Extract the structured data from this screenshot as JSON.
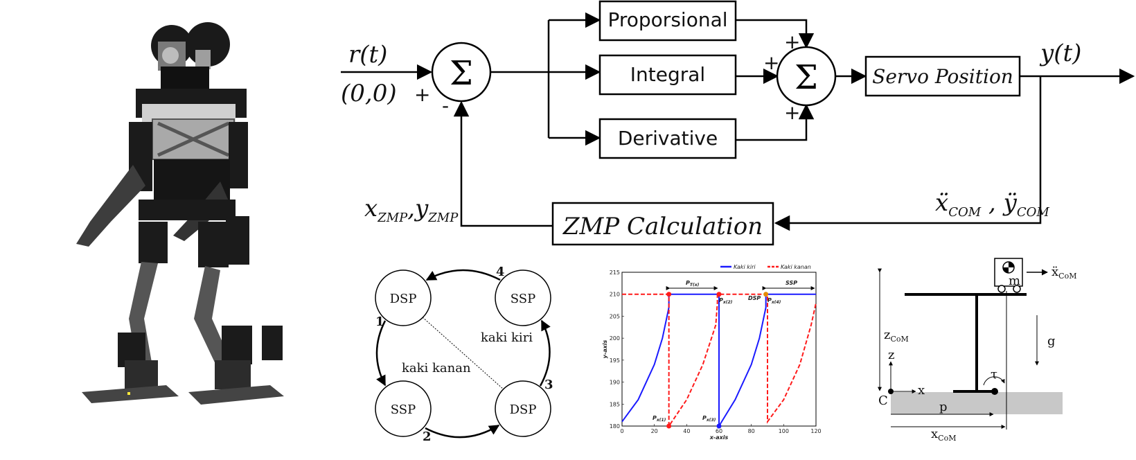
{
  "block_diagram": {
    "input_label": "r(t)",
    "input_value": "(0,0)",
    "output_label": "y(t)",
    "sum_symbol": "Σ",
    "plus": "+",
    "minus": "-",
    "blocks": {
      "proportional": "Proporsional",
      "integral": "Integral",
      "derivative": "Derivative",
      "servo": "Servo Position",
      "zmp": "ZMP Calculation"
    },
    "feedback_x": "x",
    "feedback_y": "y",
    "feedback_sub": "ZMP",
    "accel_x": "ẍ",
    "accel_y": "ÿ",
    "accel_sub": "COM",
    "comma": ","
  },
  "state_machine": {
    "states": [
      "DSP",
      "SSP",
      "SSP",
      "DSP"
    ],
    "transitions": [
      "1",
      "2",
      "3",
      "4"
    ],
    "labels": {
      "right": "kaki kanan",
      "left": "kaki kiri"
    }
  },
  "chart_data": {
    "type": "line",
    "xlabel": "x-axis",
    "ylabel": "y-axis",
    "xlim": [
      0,
      120
    ],
    "ylim": [
      180,
      215
    ],
    "xticks": [
      0,
      20,
      40,
      60,
      80,
      100,
      120
    ],
    "yticks": [
      180,
      185,
      190,
      195,
      200,
      205,
      210,
      215
    ],
    "legend_position": "top-right",
    "series": [
      {
        "name": "Kaki kiri",
        "color": "#1a1aff",
        "style": "solid",
        "x": [
          0,
          10,
          20,
          25,
          29,
          29,
          60,
          60,
          70,
          80,
          85,
          89,
          89,
          120
        ],
        "y": [
          181,
          186,
          194,
          200,
          207,
          210,
          210,
          180,
          186,
          194,
          200,
          207,
          210,
          210
        ]
      },
      {
        "name": "Kaki kanan",
        "color": "#ff1a1a",
        "style": "dashed",
        "x": [
          0,
          29,
          29,
          40,
          50,
          58,
          59,
          59,
          90,
          90,
          100,
          110,
          117,
          120
        ],
        "y": [
          210,
          210,
          180,
          186,
          194,
          203,
          208,
          210,
          210,
          181,
          186,
          194,
          203,
          208
        ]
      }
    ],
    "annotations": [
      "P",
      "T(x)",
      "SSP",
      "DSP",
      "P",
      "x(1)",
      "x(2)",
      "x(3)",
      "x(4)"
    ]
  },
  "cart_model": {
    "accel": "ẍ",
    "accel_sub": "CoM",
    "mass": "m",
    "z_com": "z",
    "z_com_sub": "CoM",
    "gravity": "g",
    "z_axis": "z",
    "x_axis": "x",
    "origin": "C",
    "tau": "τ",
    "p": "p",
    "x_com": "x",
    "x_com_sub": "CoM"
  }
}
